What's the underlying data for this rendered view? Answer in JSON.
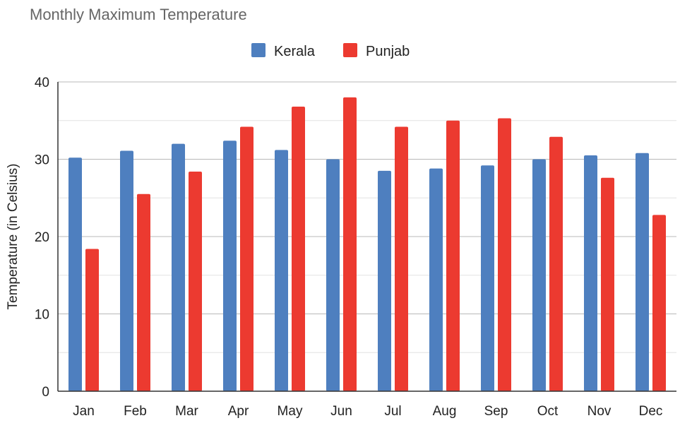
{
  "chart_data": {
    "type": "bar",
    "title": "Monthly Maximum Temperature",
    "xlabel": "",
    "ylabel": "Temperature (in Celsius)",
    "ylim": [
      0,
      40
    ],
    "yticks": [
      0,
      10,
      20,
      30,
      40
    ],
    "grid": true,
    "legend_position": "top",
    "categories": [
      "Jan",
      "Feb",
      "Mar",
      "Apr",
      "May",
      "Jun",
      "Jul",
      "Aug",
      "Sep",
      "Oct",
      "Nov",
      "Dec"
    ],
    "series": [
      {
        "name": "Kerala",
        "color": "#4e7fbf",
        "values": [
          30.2,
          31.1,
          32.0,
          32.4,
          31.2,
          30.0,
          28.5,
          28.8,
          29.2,
          30.0,
          30.5,
          30.8
        ]
      },
      {
        "name": "Punjab",
        "color": "#ec3a30",
        "values": [
          18.4,
          25.5,
          28.4,
          34.2,
          36.8,
          38.0,
          34.2,
          35.0,
          35.3,
          32.9,
          27.6,
          22.8
        ]
      }
    ]
  }
}
